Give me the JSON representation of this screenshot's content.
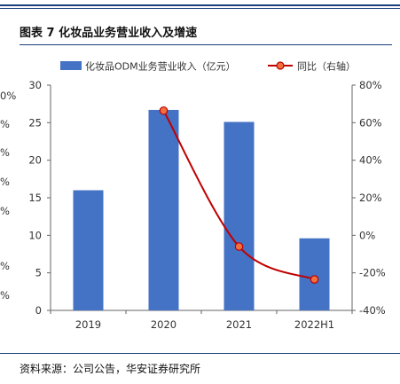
{
  "header": {
    "figure_label": "图表 7",
    "title": "化妆品业务营业收入及增速"
  },
  "source_note": "资料来源：公司公告，华安证券研究所",
  "left_cut_ticks": [
    "0%",
    "%",
    "%",
    "%",
    "%",
    "%",
    "%"
  ],
  "chart_data": {
    "type": "bar",
    "categories": [
      "2019",
      "2020",
      "2021",
      "2022H1"
    ],
    "series": [
      {
        "name": "化妆品ODM业务营业收入（亿元）",
        "type": "bar",
        "axis": "left",
        "values": [
          16.0,
          26.7,
          25.1,
          9.6
        ],
        "color": "#4472c4"
      },
      {
        "name": "同比（右轴）",
        "type": "line",
        "axis": "right",
        "values": [
          null,
          0.664,
          -0.06,
          -0.235
        ],
        "color": "#c00000"
      }
    ],
    "y_left": {
      "range": [
        0,
        30
      ],
      "ticks": [
        "0",
        "5",
        "10",
        "15",
        "20",
        "25",
        "30"
      ]
    },
    "y_right": {
      "range": [
        -0.4,
        0.8
      ],
      "ticks": [
        "-40%",
        "-20%",
        "0%",
        "20%",
        "40%",
        "60%",
        "80%"
      ]
    },
    "legend_position": "top",
    "grid": false
  }
}
